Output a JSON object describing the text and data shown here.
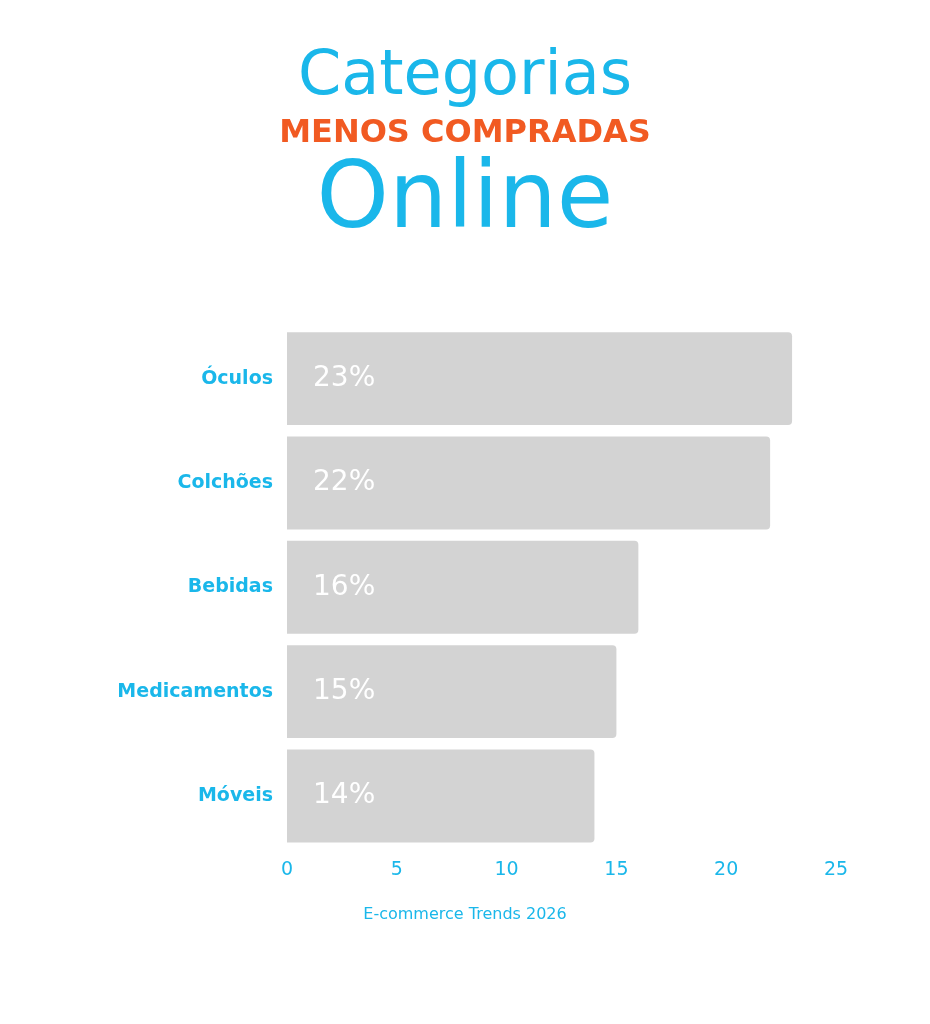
{
  "chart_data": {
    "type": "bar",
    "orientation": "horizontal",
    "title": "Categorias",
    "subtitle": "MENOS COMPRADAS",
    "annotations": [
      "Online",
      "E-commerce Trends 2026"
    ],
    "categories": [
      "Óculos",
      "Colchões",
      "Bebidas",
      "Medicamentos",
      "Móveis"
    ],
    "values": [
      23,
      22,
      16,
      15,
      14
    ],
    "value_labels": [
      "23%",
      "22%",
      "16%",
      "15%",
      "14%"
    ],
    "color": "#d3d3d3",
    "xlim": [
      0,
      25
    ],
    "xticks": [
      0,
      5,
      10,
      15,
      20,
      25
    ],
    "grid": false,
    "legend": false
  }
}
